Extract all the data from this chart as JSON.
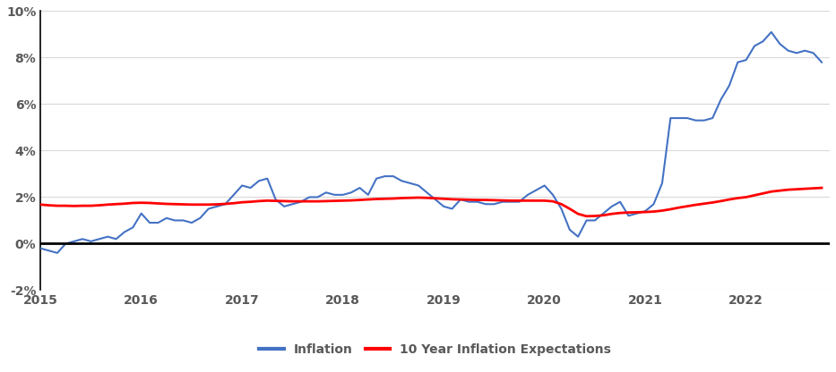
{
  "title": "",
  "inflation": {
    "x": [
      2015.0,
      2015.083,
      2015.167,
      2015.25,
      2015.333,
      2015.417,
      2015.5,
      2015.583,
      2015.667,
      2015.75,
      2015.833,
      2015.917,
      2016.0,
      2016.083,
      2016.167,
      2016.25,
      2016.333,
      2016.417,
      2016.5,
      2016.583,
      2016.667,
      2016.75,
      2016.833,
      2016.917,
      2017.0,
      2017.083,
      2017.167,
      2017.25,
      2017.333,
      2017.417,
      2017.5,
      2017.583,
      2017.667,
      2017.75,
      2017.833,
      2017.917,
      2018.0,
      2018.083,
      2018.167,
      2018.25,
      2018.333,
      2018.417,
      2018.5,
      2018.583,
      2018.667,
      2018.75,
      2018.833,
      2018.917,
      2019.0,
      2019.083,
      2019.167,
      2019.25,
      2019.333,
      2019.417,
      2019.5,
      2019.583,
      2019.667,
      2019.75,
      2019.833,
      2019.917,
      2020.0,
      2020.083,
      2020.167,
      2020.25,
      2020.333,
      2020.417,
      2020.5,
      2020.583,
      2020.667,
      2020.75,
      2020.833,
      2020.917,
      2021.0,
      2021.083,
      2021.167,
      2021.25,
      2021.333,
      2021.417,
      2021.5,
      2021.583,
      2021.667,
      2021.75,
      2021.833,
      2021.917,
      2022.0,
      2022.083,
      2022.167,
      2022.25,
      2022.333,
      2022.417,
      2022.5,
      2022.583,
      2022.667,
      2022.75
    ],
    "y": [
      -0.002,
      -0.003,
      -0.004,
      0.0,
      0.001,
      0.002,
      0.001,
      0.002,
      0.003,
      0.002,
      0.005,
      0.007,
      0.013,
      0.009,
      0.009,
      0.011,
      0.01,
      0.01,
      0.009,
      0.011,
      0.015,
      0.016,
      0.017,
      0.021,
      0.025,
      0.024,
      0.027,
      0.028,
      0.019,
      0.016,
      0.017,
      0.018,
      0.02,
      0.02,
      0.022,
      0.021,
      0.021,
      0.022,
      0.024,
      0.021,
      0.028,
      0.029,
      0.029,
      0.027,
      0.026,
      0.025,
      0.022,
      0.019,
      0.016,
      0.015,
      0.019,
      0.018,
      0.018,
      0.017,
      0.017,
      0.018,
      0.018,
      0.018,
      0.021,
      0.023,
      0.025,
      0.021,
      0.015,
      0.006,
      0.003,
      0.01,
      0.01,
      0.013,
      0.016,
      0.018,
      0.012,
      0.013,
      0.014,
      0.017,
      0.026,
      0.054,
      0.054,
      0.054,
      0.053,
      0.053,
      0.054,
      0.062,
      0.068,
      0.078,
      0.079,
      0.085,
      0.087,
      0.091,
      0.086,
      0.083,
      0.082,
      0.083,
      0.082,
      0.078
    ],
    "color": "#4472C4",
    "linewidth": 1.5,
    "label": "Inflation"
  },
  "expectations": {
    "x": [
      2015.0,
      2015.083,
      2015.167,
      2015.25,
      2015.333,
      2015.417,
      2015.5,
      2015.583,
      2015.667,
      2015.75,
      2015.833,
      2015.917,
      2016.0,
      2016.083,
      2016.167,
      2016.25,
      2016.333,
      2016.417,
      2016.5,
      2016.583,
      2016.667,
      2016.75,
      2016.833,
      2016.917,
      2017.0,
      2017.083,
      2017.167,
      2017.25,
      2017.333,
      2017.417,
      2017.5,
      2017.583,
      2017.667,
      2017.75,
      2017.833,
      2017.917,
      2018.0,
      2018.083,
      2018.167,
      2018.25,
      2018.333,
      2018.417,
      2018.5,
      2018.583,
      2018.667,
      2018.75,
      2018.833,
      2018.917,
      2019.0,
      2019.083,
      2019.167,
      2019.25,
      2019.333,
      2019.417,
      2019.5,
      2019.583,
      2019.667,
      2019.75,
      2019.833,
      2019.917,
      2020.0,
      2020.083,
      2020.167,
      2020.25,
      2020.333,
      2020.417,
      2020.5,
      2020.583,
      2020.667,
      2020.75,
      2020.833,
      2020.917,
      2021.0,
      2021.083,
      2021.167,
      2021.25,
      2021.333,
      2021.417,
      2021.5,
      2021.583,
      2021.667,
      2021.75,
      2021.833,
      2021.917,
      2022.0,
      2022.083,
      2022.167,
      2022.25,
      2022.333,
      2022.417,
      2022.5,
      2022.583,
      2022.667,
      2022.75
    ],
    "y": [
      0.0168,
      0.0165,
      0.0163,
      0.0163,
      0.0162,
      0.0163,
      0.0163,
      0.0165,
      0.0168,
      0.017,
      0.0172,
      0.0175,
      0.0176,
      0.0175,
      0.0173,
      0.0171,
      0.017,
      0.0169,
      0.0168,
      0.0168,
      0.0168,
      0.0169,
      0.0171,
      0.0174,
      0.0178,
      0.018,
      0.0183,
      0.0185,
      0.0184,
      0.0183,
      0.0182,
      0.0182,
      0.0182,
      0.0182,
      0.0183,
      0.0184,
      0.0185,
      0.0186,
      0.0188,
      0.019,
      0.0192,
      0.0193,
      0.0194,
      0.0196,
      0.0197,
      0.0198,
      0.0197,
      0.0195,
      0.0193,
      0.0191,
      0.019,
      0.0189,
      0.0188,
      0.0188,
      0.0187,
      0.0186,
      0.0185,
      0.0185,
      0.0185,
      0.0185,
      0.0185,
      0.0182,
      0.017,
      0.015,
      0.0128,
      0.0118,
      0.0119,
      0.0122,
      0.0128,
      0.0132,
      0.0134,
      0.0135,
      0.0136,
      0.0138,
      0.0142,
      0.0148,
      0.0155,
      0.0161,
      0.0167,
      0.0172,
      0.0177,
      0.0183,
      0.019,
      0.0196,
      0.02,
      0.0208,
      0.0216,
      0.0224,
      0.0228,
      0.0232,
      0.0234,
      0.0236,
      0.0238,
      0.024
    ],
    "color": "#FF0000",
    "linewidth": 2.0,
    "label": "10 Year Inflation Expectations"
  },
  "ylim": [
    -0.02,
    0.1
  ],
  "yticks": [
    -0.02,
    0.0,
    0.02,
    0.04,
    0.06,
    0.08,
    0.1
  ],
  "ytick_labels": [
    "-2%",
    "0%",
    "2%",
    "4%",
    "6%",
    "8%",
    "10%"
  ],
  "xlim": [
    2015.0,
    2022.83
  ],
  "xticks": [
    2015,
    2016,
    2017,
    2018,
    2019,
    2020,
    2021,
    2022
  ],
  "background_color": "#FFFFFF",
  "grid_color": "#D9D9D9",
  "zero_line_color": "#000000",
  "left_spine_color": "#000000",
  "tick_label_color": "#595959",
  "tick_fontsize": 10,
  "legend_fontsize": 10
}
